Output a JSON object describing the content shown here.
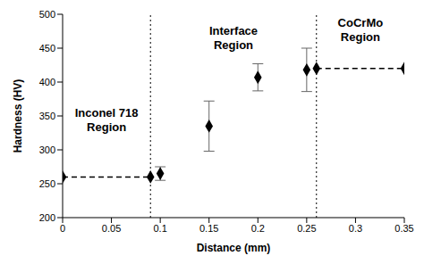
{
  "chart_data": {
    "type": "scatter",
    "x_label": "Distance (mm)",
    "y_label": "Hardness (HV)",
    "xlim": [
      0,
      0.35
    ],
    "xticks": [
      0,
      0.05,
      0.1,
      0.15,
      0.2,
      0.25,
      0.3,
      0.35
    ],
    "ylim": [
      200,
      500
    ],
    "yticks": [
      200,
      250,
      300,
      350,
      400,
      450,
      500
    ],
    "grid": false,
    "region_boundaries": [
      0.09,
      0.26
    ],
    "boundary_line_style": "dotted",
    "annotations": [
      "Inconel 718 Region",
      "Interface Region",
      "CoCrMo Region"
    ],
    "series": [
      {
        "x": [
          0,
          0.09
        ],
        "values": [
          260,
          260
        ],
        "color": "#000000",
        "marker": "diamond",
        "line_style": "dashed"
      },
      {
        "x": [
          0.1,
          0.15,
          0.2,
          0.25
        ],
        "values": [
          265,
          335,
          407,
          418
        ],
        "errors": [
          10,
          37,
          20,
          32
        ],
        "color": "#000000",
        "marker": "diamond",
        "line_style": "none"
      },
      {
        "x": [
          0.26,
          0.35
        ],
        "values": [
          420,
          420
        ],
        "color": "#000000",
        "marker": "diamond",
        "line_style": "dashed"
      }
    ]
  }
}
